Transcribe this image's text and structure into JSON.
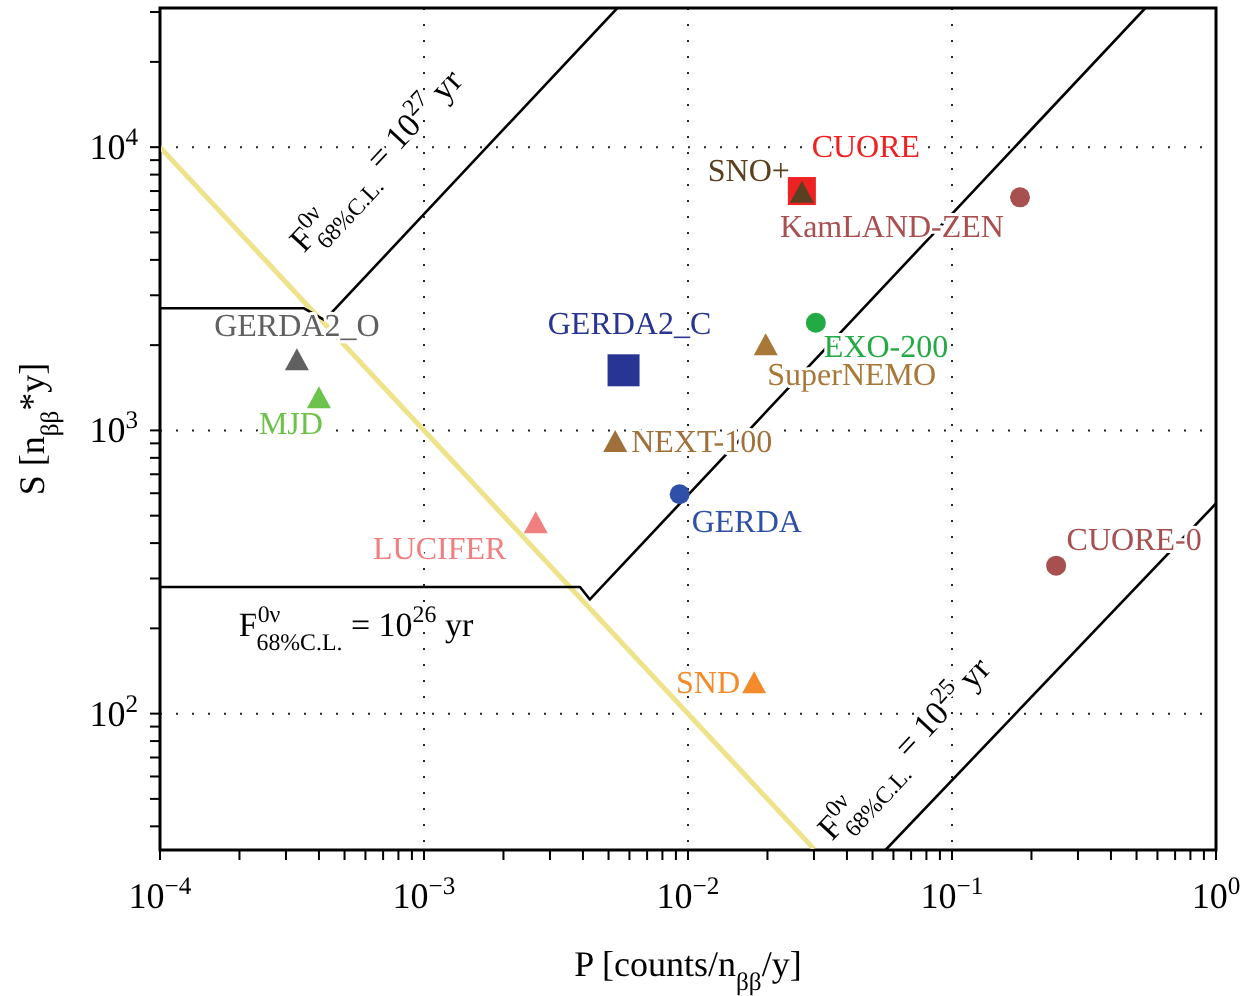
{
  "chart_data": {
    "type": "scatter",
    "xlabel": "P [counts/n$_{ββ}$/y]",
    "ylabel": "S [n$_{ββ}$*y]",
    "log": "xy",
    "xlim": [
      0.0001,
      1
    ],
    "ylim": [
      33,
      31000
    ],
    "xticks": [
      {
        "value": 0.0001,
        "label": "10$^{−4}$"
      },
      {
        "value": 0.0002,
        "label": null
      },
      {
        "value": 0.0003,
        "label": null
      },
      {
        "value": 0.0004,
        "label": null
      },
      {
        "value": 0.0005,
        "label": null
      },
      {
        "value": 0.0006,
        "label": null
      },
      {
        "value": 0.0007,
        "label": null
      },
      {
        "value": 0.0008,
        "label": null
      },
      {
        "value": 0.0009,
        "label": null
      },
      {
        "value": 0.001,
        "label": "10$^{−3}$"
      },
      {
        "value": 0.002,
        "label": null
      },
      {
        "value": 0.003,
        "label": null
      },
      {
        "value": 0.004,
        "label": null
      },
      {
        "value": 0.005,
        "label": null
      },
      {
        "value": 0.006,
        "label": null
      },
      {
        "value": 0.007,
        "label": null
      },
      {
        "value": 0.008,
        "label": null
      },
      {
        "value": 0.009,
        "label": null
      },
      {
        "value": 0.01,
        "label": "10$^{−2}$"
      },
      {
        "value": 0.02,
        "label": null
      },
      {
        "value": 0.03,
        "label": null
      },
      {
        "value": 0.04,
        "label": null
      },
      {
        "value": 0.05,
        "label": null
      },
      {
        "value": 0.06,
        "label": null
      },
      {
        "value": 0.07,
        "label": null
      },
      {
        "value": 0.08,
        "label": null
      },
      {
        "value": 0.09,
        "label": null
      },
      {
        "value": 0.1,
        "label": "10$^{−1}$"
      },
      {
        "value": 0.2,
        "label": null
      },
      {
        "value": 0.3,
        "label": null
      },
      {
        "value": 0.4,
        "label": null
      },
      {
        "value": 0.5,
        "label": null
      },
      {
        "value": 0.6,
        "label": null
      },
      {
        "value": 0.7,
        "label": null
      },
      {
        "value": 0.8,
        "label": null
      },
      {
        "value": 0.9,
        "label": null
      },
      {
        "value": 1,
        "label": "10$^{0}$"
      }
    ],
    "yticks": [
      {
        "value": 40,
        "label": null
      },
      {
        "value": 50,
        "label": null
      },
      {
        "value": 60,
        "label": null
      },
      {
        "value": 70,
        "label": null
      },
      {
        "value": 80,
        "label": null
      },
      {
        "value": 90,
        "label": null
      },
      {
        "value": 100,
        "label": "10$^{2}$"
      },
      {
        "value": 200,
        "label": null
      },
      {
        "value": 300,
        "label": null
      },
      {
        "value": 400,
        "label": null
      },
      {
        "value": 500,
        "label": null
      },
      {
        "value": 600,
        "label": null
      },
      {
        "value": 700,
        "label": null
      },
      {
        "value": 800,
        "label": null
      },
      {
        "value": 900,
        "label": null
      },
      {
        "value": 1000,
        "label": "10$^{3}$"
      },
      {
        "value": 2000,
        "label": null
      },
      {
        "value": 3000,
        "label": null
      },
      {
        "value": 4000,
        "label": null
      },
      {
        "value": 5000,
        "label": null
      },
      {
        "value": 6000,
        "label": null
      },
      {
        "value": 7000,
        "label": null
      },
      {
        "value": 8000,
        "label": null
      },
      {
        "value": 9000,
        "label": null
      },
      {
        "value": 10000,
        "label": "10$^{4}$"
      },
      {
        "value": 20000,
        "label": null
      },
      {
        "value": 30000,
        "label": null
      }
    ],
    "grid": true,
    "legend": false,
    "series": [
      {
        "type": "line",
        "color": "#eee38a",
        "x": [
          0.0001,
          0.03
        ],
        "values": [
          10000,
          33.3
        ]
      },
      {
        "type": "line",
        "color": "#000000",
        "x": [
          0.0001,
          0.00035,
          0.00042,
          0.0054
        ],
        "values": [
          2700,
          2700,
          2450,
          31000
        ]
      },
      {
        "type": "line",
        "color": "#000000",
        "x": [
          0.0001,
          0.0039,
          0.00425,
          0.54
        ],
        "values": [
          280,
          280,
          253,
          31000
        ]
      },
      {
        "type": "line",
        "color": "#000000",
        "x": [
          0.056,
          1
        ],
        "values": [
          33,
          552
        ]
      },
      {
        "name": "GERDA2_O",
        "color": "#606060",
        "marker": "triangle",
        "x": [
          0.00033
        ],
        "values": [
          1770
        ]
      },
      {
        "name": "MJD",
        "color": "#6cc24a",
        "marker": "triangle",
        "x": [
          0.0004
        ],
        "values": [
          1300
        ]
      },
      {
        "name": "GERDA2_C",
        "color": "#283593",
        "marker": "square",
        "x": [
          0.0057
        ],
        "values": [
          1630
        ]
      },
      {
        "name": "NEXT-100",
        "color": "#a0703a",
        "marker": "triangle",
        "x": [
          0.0053
        ],
        "values": [
          910
        ]
      },
      {
        "name": "GERDA",
        "color": "#3050a8",
        "marker": "circle",
        "x": [
          0.0093
        ],
        "values": [
          595
        ]
      },
      {
        "name": "LUCIFER",
        "color": "#f08080",
        "marker": "triangle",
        "x": [
          0.00265
        ],
        "values": [
          470
        ]
      },
      {
        "name": "SND",
        "color": "#f58a2a",
        "marker": "triangle",
        "x": [
          0.0178
        ],
        "values": [
          128
        ]
      },
      {
        "name": "CUORE",
        "color": "#ee2222",
        "marker": "square",
        "x": [
          0.027
        ],
        "values": [
          7000
        ]
      },
      {
        "name": "SNO+",
        "color": "#5a4020",
        "marker": "triangle",
        "x": [
          0.027
        ],
        "values": [
          6900
        ]
      },
      {
        "name": "KamLAND-ZEN",
        "color": "#a85050",
        "marker": "circle",
        "x": [
          0.181
        ],
        "values": [
          6650
        ]
      },
      {
        "name": "EXO-200",
        "color": "#22aa44",
        "marker": "circle",
        "x": [
          0.0305
        ],
        "values": [
          2400
        ]
      },
      {
        "name": "SuperNEMO",
        "color": "#a87838",
        "marker": "triangle",
        "x": [
          0.0197
        ],
        "values": [
          2000
        ]
      },
      {
        "name": "CUORE-0",
        "color": "#a85050",
        "marker": "circle",
        "x": [
          0.248
        ],
        "values": [
          333
        ]
      }
    ],
    "annotations": [
      "F$^{0ν}$$_{68%C.L.}$ = 10$^{27}$ yr",
      "F$^{0ν}$$_{68%C.L.}$ = 10$^{26}$ yr",
      "F$^{0ν}$$_{68%C.L.}$ = 10$^{25}$ yr"
    ]
  }
}
